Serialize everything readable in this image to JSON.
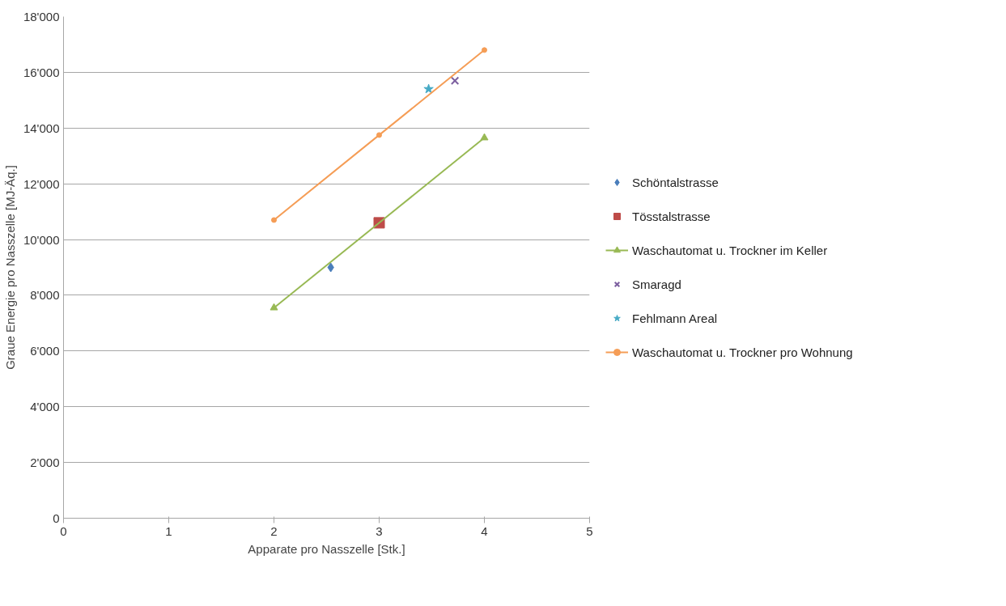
{
  "chart_data": {
    "type": "scatter",
    "xlabel": "Apparate pro Nasszelle [Stk.]",
    "ylabel": "Graue Energie pro Nasszelle [MJ-Äq.]",
    "xlim": [
      0,
      5
    ],
    "xticks": [
      0,
      1,
      2,
      3,
      4,
      5
    ],
    "ylim": [
      0,
      18000
    ],
    "yticks": [
      {
        "value": 0,
        "label": "0"
      },
      {
        "value": 2000,
        "label": "2'000"
      },
      {
        "value": 4000,
        "label": "4'000"
      },
      {
        "value": 6000,
        "label": "6'000"
      },
      {
        "value": 8000,
        "label": "8'000"
      },
      {
        "value": 10000,
        "label": "10'000"
      },
      {
        "value": 12000,
        "label": "12'000"
      },
      {
        "value": 14000,
        "label": "14'000"
      },
      {
        "value": 16000,
        "label": "16'000"
      },
      {
        "value": 18000,
        "label": "18'000"
      }
    ],
    "grid": "y",
    "legend": "right",
    "series": [
      {
        "name": "Schöntalstrasse",
        "marker": "diamond",
        "color": "#4a7ebb",
        "x": [
          2.54
        ],
        "values": [
          9000
        ]
      },
      {
        "name": "Tösstalstrasse",
        "marker": "square",
        "color": "#be4b48",
        "x": [
          3
        ],
        "values": [
          10600
        ]
      },
      {
        "name": "Waschautomat u. Trockner im Keller",
        "type": "line",
        "marker": "triangle",
        "color": "#98b954",
        "x": [
          2,
          4
        ],
        "values": [
          7550,
          13650
        ]
      },
      {
        "name": "Smaragd",
        "marker": "cross",
        "color": "#7d60a0",
        "x": [
          3.72
        ],
        "values": [
          15700
        ]
      },
      {
        "name": "Fehlmann Areal",
        "marker": "star",
        "color": "#46aac5",
        "x": [
          3.47
        ],
        "values": [
          15400
        ]
      },
      {
        "name": "Waschautomat u. Trockner pro Wohnung",
        "type": "line",
        "marker": "circle",
        "color": "#f59d56",
        "x": [
          2,
          3,
          4
        ],
        "values": [
          10700,
          13750,
          16800
        ]
      }
    ]
  }
}
